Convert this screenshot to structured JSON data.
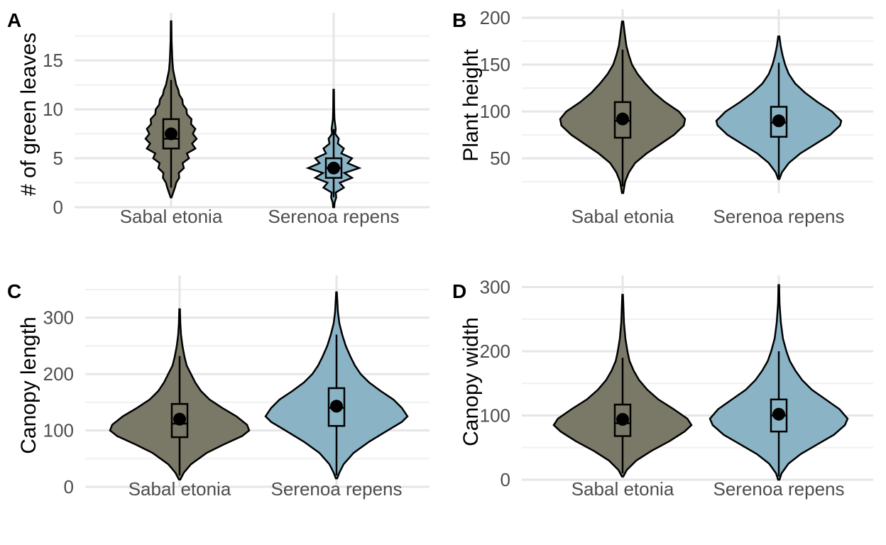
{
  "chart_data": [
    {
      "panel": "A",
      "type": "violin",
      "ylabel": "# of green leaves",
      "ylim": [
        0,
        19
      ],
      "yticks": [
        0,
        5,
        10,
        15
      ],
      "categories": [
        "Sabal etonia",
        "Serenoa repens"
      ],
      "colors": [
        "#7a7866",
        "#8ab4c6"
      ],
      "series": [
        {
          "category": "Sabal etonia",
          "min": 1,
          "max": 19,
          "q1": 6,
          "median": 7,
          "q3": 9,
          "mean": 7.5,
          "whisker_low": 2,
          "whisker_high": 13,
          "density": [
            [
              1,
              0.02
            ],
            [
              2,
              0.15
            ],
            [
              2.5,
              0.2
            ],
            [
              3,
              0.32
            ],
            [
              3.5,
              0.3
            ],
            [
              4,
              0.5
            ],
            [
              4.5,
              0.45
            ],
            [
              5,
              0.7
            ],
            [
              5.5,
              0.62
            ],
            [
              6,
              0.95
            ],
            [
              6.5,
              0.82
            ],
            [
              7,
              1.0
            ],
            [
              7.5,
              0.85
            ],
            [
              8,
              0.95
            ],
            [
              8.5,
              0.78
            ],
            [
              9,
              0.8
            ],
            [
              9.5,
              0.62
            ],
            [
              10,
              0.6
            ],
            [
              10.5,
              0.46
            ],
            [
              11,
              0.44
            ],
            [
              11.5,
              0.32
            ],
            [
              12,
              0.28
            ],
            [
              12.5,
              0.2
            ],
            [
              13,
              0.16
            ],
            [
              14,
              0.08
            ],
            [
              15,
              0.05
            ],
            [
              17,
              0.02
            ],
            [
              19,
              0.01
            ]
          ]
        },
        {
          "category": "Serenoa repens",
          "min": 0,
          "max": 12,
          "q1": 3,
          "median": 4,
          "q3": 5,
          "mean": 4,
          "whisker_low": 1,
          "whisker_high": 8,
          "density": [
            [
              0,
              0.02
            ],
            [
              0.5,
              0.04
            ],
            [
              1,
              0.1
            ],
            [
              1.5,
              0.08
            ],
            [
              2,
              0.4
            ],
            [
              2.5,
              0.24
            ],
            [
              3,
              0.72
            ],
            [
              3.5,
              0.42
            ],
            [
              4,
              1.0
            ],
            [
              4.5,
              0.55
            ],
            [
              5,
              0.72
            ],
            [
              5.5,
              0.3
            ],
            [
              6,
              0.4
            ],
            [
              6.5,
              0.16
            ],
            [
              7,
              0.2
            ],
            [
              7.5,
              0.06
            ],
            [
              8,
              0.08
            ],
            [
              9,
              0.03
            ],
            [
              10,
              0.02
            ],
            [
              12,
              0.01
            ]
          ]
        }
      ]
    },
    {
      "panel": "B",
      "type": "violin",
      "ylabel": "Plant height",
      "ylim": [
        13,
        200
      ],
      "yticks": [
        50,
        100,
        150,
        200
      ],
      "categories": [
        "Sabal etonia",
        "Serenoa repens"
      ],
      "colors": [
        "#7a7866",
        "#8ab4c6"
      ],
      "series": [
        {
          "category": "Sabal etonia",
          "min": 13,
          "max": 196,
          "q1": 72,
          "median": 90,
          "q3": 110,
          "mean": 92,
          "whisker_low": 20,
          "whisker_high": 166,
          "density": [
            [
              13,
              0.01
            ],
            [
              25,
              0.04
            ],
            [
              35,
              0.1
            ],
            [
              45,
              0.2
            ],
            [
              55,
              0.38
            ],
            [
              65,
              0.6
            ],
            [
              75,
              0.82
            ],
            [
              85,
              0.98
            ],
            [
              92,
              1.0
            ],
            [
              100,
              0.9
            ],
            [
              110,
              0.68
            ],
            [
              120,
              0.5
            ],
            [
              130,
              0.36
            ],
            [
              140,
              0.24
            ],
            [
              150,
              0.15
            ],
            [
              160,
              0.1
            ],
            [
              170,
              0.06
            ],
            [
              180,
              0.04
            ],
            [
              196,
              0.01
            ]
          ]
        },
        {
          "category": "Serenoa repens",
          "min": 28,
          "max": 180,
          "q1": 73,
          "median": 88,
          "q3": 105,
          "mean": 90,
          "whisker_low": 30,
          "whisker_high": 152,
          "density": [
            [
              28,
              0.01
            ],
            [
              35,
              0.05
            ],
            [
              45,
              0.16
            ],
            [
              55,
              0.34
            ],
            [
              65,
              0.58
            ],
            [
              75,
              0.82
            ],
            [
              85,
              0.98
            ],
            [
              90,
              1.0
            ],
            [
              100,
              0.85
            ],
            [
              110,
              0.62
            ],
            [
              120,
              0.42
            ],
            [
              130,
              0.26
            ],
            [
              140,
              0.16
            ],
            [
              150,
              0.1
            ],
            [
              160,
              0.06
            ],
            [
              170,
              0.03
            ],
            [
              180,
              0.01
            ]
          ]
        }
      ]
    },
    {
      "panel": "C",
      "type": "violin",
      "ylabel": "Canopy length",
      "ylim": [
        0,
        360
      ],
      "yticks": [
        0,
        100,
        200,
        300
      ],
      "categories": [
        "Sabal etonia",
        "Serenoa repens"
      ],
      "colors": [
        "#7a7866",
        "#8ab4c6"
      ],
      "series": [
        {
          "category": "Sabal etonia",
          "min": 13,
          "max": 315,
          "q1": 88,
          "median": 112,
          "q3": 147,
          "mean": 120,
          "whisker_low": 20,
          "whisker_high": 232,
          "density": [
            [
              13,
              0.01
            ],
            [
              25,
              0.06
            ],
            [
              40,
              0.16
            ],
            [
              60,
              0.38
            ],
            [
              75,
              0.62
            ],
            [
              90,
              0.88
            ],
            [
              100,
              0.98
            ],
            [
              110,
              0.95
            ],
            [
              125,
              0.8
            ],
            [
              140,
              0.6
            ],
            [
              155,
              0.42
            ],
            [
              170,
              0.3
            ],
            [
              185,
              0.22
            ],
            [
              200,
              0.16
            ],
            [
              215,
              0.1
            ],
            [
              230,
              0.07
            ],
            [
              250,
              0.04
            ],
            [
              270,
              0.02
            ],
            [
              290,
              0.01
            ],
            [
              315,
              0.005
            ]
          ]
        },
        {
          "category": "Serenoa repens",
          "min": 15,
          "max": 345,
          "q1": 108,
          "median": 140,
          "q3": 175,
          "mean": 143,
          "whisker_low": 20,
          "whisker_high": 270,
          "density": [
            [
              15,
              0.01
            ],
            [
              25,
              0.04
            ],
            [
              40,
              0.1
            ],
            [
              60,
              0.24
            ],
            [
              80,
              0.46
            ],
            [
              100,
              0.72
            ],
            [
              115,
              0.92
            ],
            [
              125,
              1.0
            ],
            [
              140,
              0.92
            ],
            [
              155,
              0.8
            ],
            [
              170,
              0.62
            ],
            [
              185,
              0.46
            ],
            [
              200,
              0.34
            ],
            [
              215,
              0.26
            ],
            [
              230,
              0.2
            ],
            [
              250,
              0.13
            ],
            [
              270,
              0.08
            ],
            [
              290,
              0.04
            ],
            [
              310,
              0.02
            ],
            [
              345,
              0.005
            ]
          ]
        }
      ]
    },
    {
      "panel": "D",
      "type": "violin",
      "ylabel": "Canopy width",
      "ylim": [
        0,
        305
      ],
      "yticks": [
        0,
        100,
        200,
        300
      ],
      "categories": [
        "Sabal etonia",
        "Serenoa repens"
      ],
      "colors": [
        "#7a7866",
        "#8ab4c6"
      ],
      "series": [
        {
          "category": "Sabal etonia",
          "min": 5,
          "max": 288,
          "q1": 68,
          "median": 88,
          "q3": 117,
          "mean": 94,
          "whisker_low": 10,
          "whisker_high": 190,
          "density": [
            [
              5,
              0.01
            ],
            [
              15,
              0.06
            ],
            [
              30,
              0.2
            ],
            [
              45,
              0.42
            ],
            [
              60,
              0.68
            ],
            [
              75,
              0.9
            ],
            [
              85,
              1.0
            ],
            [
              95,
              0.94
            ],
            [
              110,
              0.74
            ],
            [
              125,
              0.52
            ],
            [
              140,
              0.36
            ],
            [
              155,
              0.24
            ],
            [
              170,
              0.16
            ],
            [
              185,
              0.1
            ],
            [
              200,
              0.07
            ],
            [
              220,
              0.04
            ],
            [
              245,
              0.02
            ],
            [
              288,
              0.005
            ]
          ]
        },
        {
          "category": "Serenoa repens",
          "min": 0,
          "max": 303,
          "q1": 75,
          "median": 100,
          "q3": 125,
          "mean": 102,
          "whisker_low": 5,
          "whisker_high": 200,
          "density": [
            [
              0,
              0.01
            ],
            [
              10,
              0.04
            ],
            [
              25,
              0.14
            ],
            [
              40,
              0.32
            ],
            [
              55,
              0.56
            ],
            [
              70,
              0.8
            ],
            [
              85,
              0.96
            ],
            [
              95,
              1.0
            ],
            [
              110,
              0.88
            ],
            [
              125,
              0.68
            ],
            [
              140,
              0.48
            ],
            [
              155,
              0.34
            ],
            [
              170,
              0.24
            ],
            [
              185,
              0.16
            ],
            [
              200,
              0.11
            ],
            [
              220,
              0.06
            ],
            [
              245,
              0.03
            ],
            [
              275,
              0.01
            ],
            [
              303,
              0.005
            ]
          ]
        }
      ]
    }
  ]
}
